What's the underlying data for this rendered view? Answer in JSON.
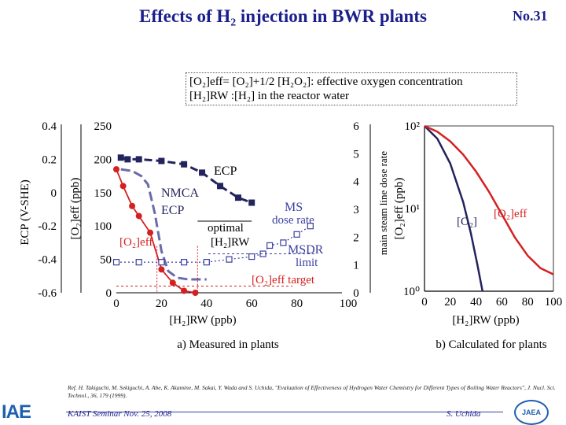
{
  "title": "Effects of H₂ injection in BWR plants",
  "slide_no": "No.31",
  "definition": {
    "line1": "[O₂]eff= [O₂]+1/2 [H₂O₂]: effective oxygen concentration",
    "line2": "[H₂]RW  :[H₂] in the reactor water"
  },
  "reference": "Ref.  H. Takiguchi, M. Sekiguchi, A. Abe, K. Akamine, M. Sakai, Y. Wada and S. Uchida, \"Evaluation of Effectiveness of Hydrogen Water Chemistry for Different Types of Boiling Water Reactors\", J. Nucl. Sci. Technol., 36, 179 (1999).",
  "footer": {
    "seminar": "KAIST Seminar  Nov. 25, 2008",
    "author": "S. Uchida",
    "logo_left": "IAE",
    "logo_right": "JAEA"
  },
  "colors": {
    "title": "#1a1f8c",
    "red": "#d42020",
    "dark_blue": "#23235e",
    "gray_blue": "#6a6aa8",
    "light_blue": "#3a3fa0"
  },
  "chart_data": [
    {
      "type": "line",
      "caption": "a) Measured in plants",
      "xlabel": "[H₂]RW (ppb)",
      "xlim": [
        0,
        100
      ],
      "x_ticks": [
        "0",
        "20",
        "40",
        "60",
        "80",
        "100"
      ],
      "y_axes": [
        {
          "label": "ECP  (V-SHE)",
          "ylim": [
            -0.6,
            0.4
          ],
          "ticks": [
            "0.4",
            "0.2",
            "0",
            "-0.2",
            "-0.4",
            "-0.6"
          ]
        },
        {
          "label": "[O₂]eff (ppb)",
          "ylim": [
            0,
            250
          ],
          "ticks": [
            "250",
            "200",
            "150",
            "100",
            "50",
            "0"
          ]
        },
        {
          "label": "main steam line dose rate",
          "ylim": [
            0,
            6
          ],
          "ticks": [
            "6",
            "5",
            "4",
            "3",
            "2",
            "1",
            "0"
          ]
        }
      ],
      "series": [
        {
          "name": "ECP",
          "axis": "ECP",
          "style": "dashed-square",
          "x": [
            2,
            5,
            10,
            20,
            30,
            38,
            46,
            54,
            60
          ],
          "y": [
            0.21,
            0.2,
            0.2,
            0.19,
            0.17,
            0.12,
            0.04,
            -0.03,
            -0.06
          ]
        },
        {
          "name": "NMCA ECP",
          "axis": "ECP",
          "style": "dashed-gray",
          "x": [
            2,
            7,
            11,
            14,
            17,
            20,
            23,
            27,
            32,
            40
          ],
          "y": [
            0.14,
            0.13,
            0.1,
            0.05,
            -0.12,
            -0.35,
            -0.47,
            -0.51,
            -0.52,
            -0.52
          ]
        },
        {
          "name": "[O₂]eff",
          "axis": "[O₂]eff",
          "style": "solid-circle",
          "x": [
            0,
            3,
            7,
            10,
            15,
            20,
            25,
            30,
            35
          ],
          "y": [
            185,
            160,
            130,
            115,
            90,
            35,
            15,
            3,
            0
          ]
        },
        {
          "name": "MS dose rate",
          "axis": "dose",
          "style": "dotted-square",
          "x": [
            0,
            10,
            20,
            30,
            40,
            50,
            60,
            65,
            68,
            74,
            80,
            86
          ],
          "y": [
            1.1,
            1.1,
            1.1,
            1.1,
            1.1,
            1.2,
            1.3,
            1.4,
            1.7,
            1.8,
            2.1,
            2.4
          ]
        }
      ],
      "annotations": {
        "ecp": "ECP",
        "nmca_1": "NMCA",
        "nmca_2": "ECP",
        "ms_1": "MS",
        "ms_2": "dose rate",
        "optimal_1": "optimal",
        "optimal_2": "[H₂]RW",
        "msdr_1": "MSDR",
        "msdr_2": "limit",
        "o2eff": "[O₂]eff",
        "target": "[O₂]eff target"
      }
    },
    {
      "type": "line",
      "caption": "b)  Calculated for plants",
      "xlabel": "[H₂]RW  (ppb)",
      "xlim": [
        0,
        100
      ],
      "x_ticks": [
        "0",
        "20",
        "40",
        "60",
        "80",
        "100"
      ],
      "y_scale": "log",
      "ylim": [
        1,
        100
      ],
      "ylabel": "[O₂]eff  (ppb)",
      "y_ticks": [
        "10²",
        "10¹",
        "10⁰"
      ],
      "series": [
        {
          "name": "[O₂]",
          "color": "dark_blue",
          "x": [
            0,
            10,
            20,
            30,
            36,
            41,
            45
          ],
          "y": [
            100,
            70,
            35,
            12,
            5,
            2.1,
            1
          ]
        },
        {
          "name": "[O₂]eff",
          "color": "red",
          "x": [
            0,
            10,
            20,
            30,
            40,
            50,
            60,
            70,
            80,
            90,
            100
          ],
          "y": [
            100,
            85,
            65,
            45,
            28,
            16,
            8.5,
            4.5,
            2.7,
            1.9,
            1.6
          ]
        }
      ]
    }
  ]
}
